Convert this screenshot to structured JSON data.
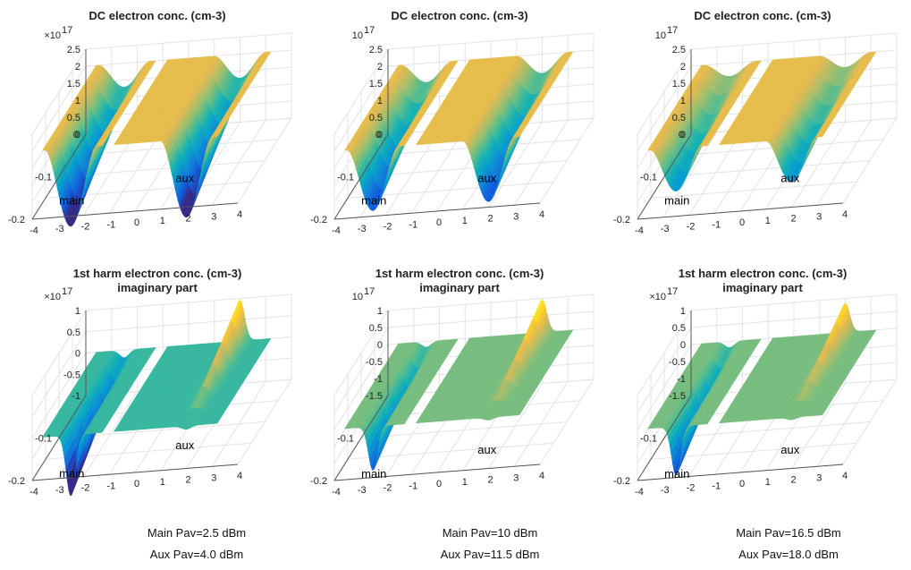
{
  "chart_data": [
    {
      "type": "surface",
      "title": [
        "DC electron conc. (cm-3)"
      ],
      "zexp": "×10",
      "zexp_sup": "17",
      "z_ticks": [
        "2.5",
        "2",
        "1.5",
        "1",
        "0.5",
        "0"
      ],
      "y_ticks": [
        "0",
        "-0.1",
        "-0.2"
      ],
      "x_ticks": [
        "-4",
        "-3",
        "-2",
        "-1",
        "0",
        "1",
        "2",
        "3",
        "4"
      ],
      "labels": {
        "main": "main",
        "aux": "aux"
      },
      "zlim": [
        0,
        2.5
      ],
      "ylim": [
        -0.2,
        0
      ],
      "xlim": [
        -4,
        4
      ],
      "mode": "dc",
      "depth": [
        1.0,
        1.0
      ]
    },
    {
      "type": "surface",
      "title": [
        "DC electron conc. (cm-3)"
      ],
      "zexp": "10",
      "zexp_sup": "17",
      "z_ticks": [
        "2.5",
        "2",
        "1.5",
        "1",
        "0.5",
        "0"
      ],
      "y_ticks": [
        "0",
        "-0.1",
        "-0.2"
      ],
      "x_ticks": [
        "-4",
        "-3",
        "-2",
        "-1",
        "0",
        "1",
        "2",
        "3",
        "4"
      ],
      "labels": {
        "main": "main",
        "aux": "aux"
      },
      "zlim": [
        0,
        2.5
      ],
      "ylim": [
        -0.2,
        0
      ],
      "xlim": [
        -4,
        4
      ],
      "mode": "dc",
      "depth": [
        0.8,
        0.8
      ]
    },
    {
      "type": "surface",
      "title": [
        "DC electron conc. (cm-3)"
      ],
      "zexp": "10",
      "zexp_sup": "17",
      "z_ticks": [
        "2.5",
        "2",
        "1.5",
        "1",
        "0.5",
        "0"
      ],
      "y_ticks": [
        "0",
        "-0.1",
        "-0.2"
      ],
      "x_ticks": [
        "-4",
        "-3",
        "-2",
        "-1",
        "0",
        "1",
        "2",
        "3",
        "4"
      ],
      "labels": {
        "main": "main",
        "aux": "aux"
      },
      "zlim": [
        0,
        2.5
      ],
      "ylim": [
        -0.2,
        0
      ],
      "xlim": [
        -4,
        4
      ],
      "mode": "dc",
      "depth": [
        0.55,
        0.55
      ]
    },
    {
      "type": "surface",
      "title": [
        "1st harm electron conc. (cm-3)",
        "imaginary part"
      ],
      "zexp": "×10",
      "zexp_sup": "17",
      "z_ticks": [
        "1",
        "0.5",
        "0",
        "-0.5",
        "-1"
      ],
      "y_ticks": [
        "-0.1",
        "-0.2"
      ],
      "x_ticks": [
        "-4",
        "-3",
        "-2",
        "-1",
        "0",
        "1",
        "2",
        "3",
        "4"
      ],
      "labels": {
        "main": "main",
        "aux": "aux"
      },
      "zlim": [
        -1,
        1
      ],
      "ylim": [
        -0.2,
        0
      ],
      "xlim": [
        -4,
        4
      ],
      "mode": "h1",
      "depth": [
        1.0,
        0.9
      ]
    },
    {
      "type": "surface",
      "title": [
        "1st harm electron conc. (cm-3)",
        "imaginary part"
      ],
      "zexp": "10",
      "zexp_sup": "17",
      "z_ticks": [
        "1",
        "0.5",
        "0",
        "-0.5",
        "-1",
        "-1.5"
      ],
      "y_ticks": [
        "-0.1",
        "-0.2"
      ],
      "x_ticks": [
        "-4",
        "-3",
        "-2",
        "-1",
        "0",
        "1",
        "2",
        "3",
        "4"
      ],
      "labels": {
        "main": "main",
        "aux": "aux"
      },
      "zlim": [
        -1.5,
        1
      ],
      "ylim": [
        -0.2,
        0
      ],
      "xlim": [
        -4,
        4
      ],
      "mode": "h1",
      "depth": [
        0.9,
        0.9
      ]
    },
    {
      "type": "surface",
      "title": [
        "1st harm electron conc. (cm-3)",
        "imaginary part"
      ],
      "zexp": "×10",
      "zexp_sup": "17",
      "z_ticks": [
        "1",
        "0.5",
        "0",
        "-0.5",
        "-1",
        "-1.5"
      ],
      "y_ticks": [
        "-0.1",
        "-0.2"
      ],
      "x_ticks": [
        "-4",
        "-3",
        "-2",
        "-1",
        "0",
        "1",
        "2",
        "3",
        "4"
      ],
      "labels": {
        "main": "main",
        "aux": "aux"
      },
      "zlim": [
        -1.5,
        1
      ],
      "ylim": [
        -0.2,
        0
      ],
      "xlim": [
        -4,
        4
      ],
      "mode": "h1",
      "depth": [
        1.0,
        0.8
      ]
    }
  ],
  "captions": [
    {
      "main": "Main Pav=2.5 dBm",
      "aux": "Aux Pav=4.0 dBm"
    },
    {
      "main": "Main Pav=10 dBm",
      "aux": "Aux Pav=11.5 dBm"
    },
    {
      "main": "Main Pav=16.5 dBm",
      "aux": "Aux Pav=18.0 dBm"
    }
  ]
}
